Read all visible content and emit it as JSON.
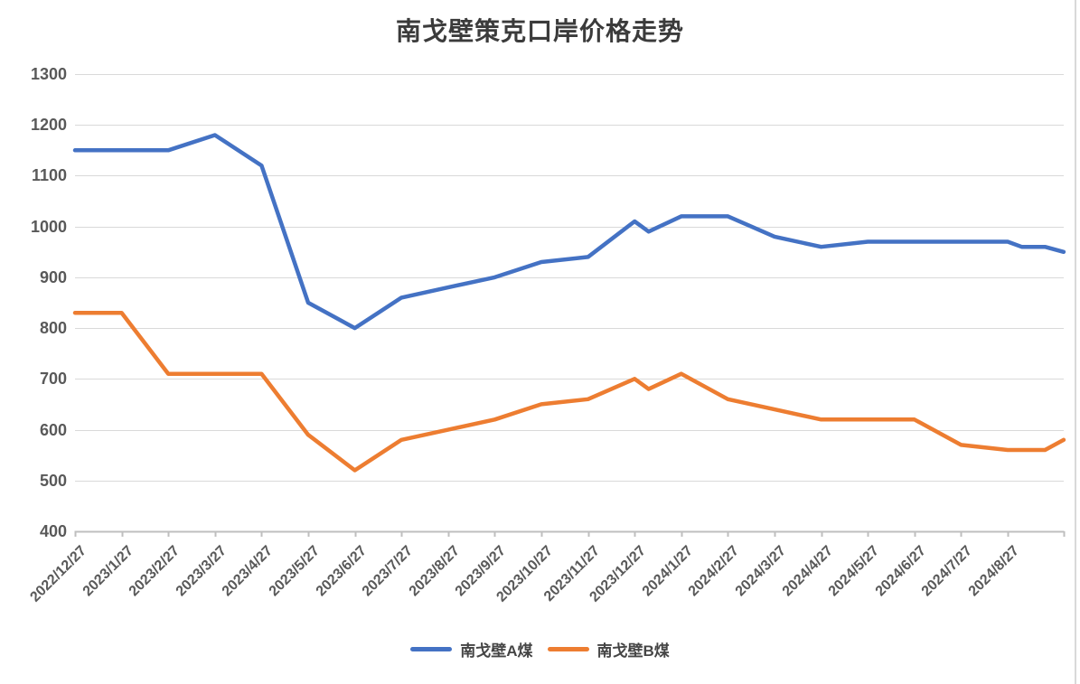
{
  "chart_data": {
    "type": "line",
    "title": "南戈壁策克口岸价格走势",
    "xlabel": "",
    "ylabel": "",
    "ylim": [
      400,
      1300
    ],
    "y_tick_labels": [
      400,
      500,
      600,
      700,
      800,
      900,
      1000,
      1100,
      1200,
      1300
    ],
    "x_tick_labels": [
      "2022/12/27",
      "2023/1/27",
      "2023/2/27",
      "2023/3/27",
      "2023/4/27",
      "2023/5/27",
      "2023/6/27",
      "2023/7/27",
      "2023/8/27",
      "2023/9/27",
      "2023/10/27",
      "2023/11/27",
      "2023/12/27",
      "2024/1/27",
      "2024/2/27",
      "2024/3/27",
      "2024/4/27",
      "2024/5/27",
      "2024/6/27",
      "2024/7/27",
      "2024/8/27"
    ],
    "grid": true,
    "legend_position": "bottom-center",
    "series": [
      {
        "name": "南戈壁A煤",
        "color": "#4472C4",
        "points": [
          [
            0,
            1150
          ],
          [
            1,
            1150
          ],
          [
            2,
            1150
          ],
          [
            3,
            1180
          ],
          [
            4,
            1120
          ],
          [
            5,
            850
          ],
          [
            6,
            800
          ],
          [
            7,
            860
          ],
          [
            8,
            880
          ],
          [
            9,
            900
          ],
          [
            10,
            930
          ],
          [
            11,
            940
          ],
          [
            12,
            1010
          ],
          [
            12.3,
            990
          ],
          [
            13,
            1020
          ],
          [
            14,
            1020
          ],
          [
            15,
            980
          ],
          [
            16,
            960
          ],
          [
            17,
            970
          ],
          [
            18,
            970
          ],
          [
            19,
            970
          ],
          [
            20,
            970
          ],
          [
            20.3,
            960
          ],
          [
            20.8,
            960
          ],
          [
            21.2,
            950
          ]
        ]
      },
      {
        "name": "南戈壁B煤",
        "color": "#ED7D31",
        "points": [
          [
            0,
            830
          ],
          [
            1,
            830
          ],
          [
            2,
            710
          ],
          [
            3,
            710
          ],
          [
            4,
            710
          ],
          [
            5,
            590
          ],
          [
            6,
            520
          ],
          [
            7,
            580
          ],
          [
            8,
            600
          ],
          [
            9,
            620
          ],
          [
            10,
            650
          ],
          [
            11,
            660
          ],
          [
            12,
            700
          ],
          [
            12.3,
            680
          ],
          [
            13,
            710
          ],
          [
            14,
            660
          ],
          [
            15,
            640
          ],
          [
            16,
            620
          ],
          [
            17,
            620
          ],
          [
            18,
            620
          ],
          [
            19,
            570
          ],
          [
            20,
            560
          ],
          [
            20.3,
            560
          ],
          [
            20.8,
            560
          ],
          [
            21.2,
            580
          ]
        ]
      }
    ],
    "colors": {
      "grid": "#d9d9d9",
      "axis": "#bfbfbf",
      "tick_text": "#595959",
      "title_text": "#3b3b3b"
    }
  }
}
